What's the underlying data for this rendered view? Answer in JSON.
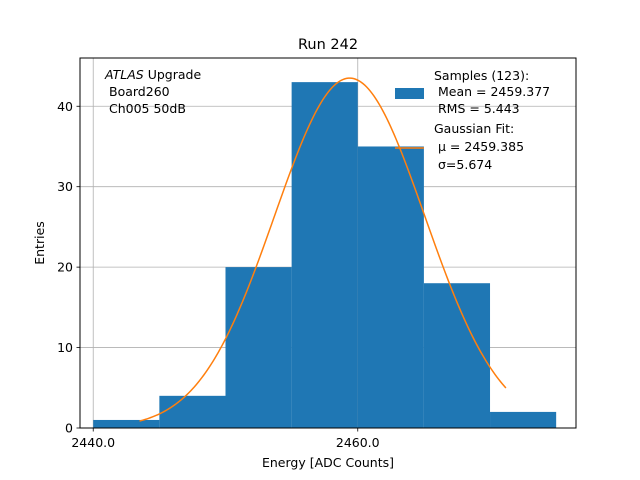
{
  "chart_data": {
    "type": "bar",
    "title": "Run 242",
    "xlabel": "Energy [ADC Counts]",
    "ylabel": "Entries",
    "xlim": [
      2439.0,
      2476.5
    ],
    "ylim": [
      0,
      46
    ],
    "xticks": [
      2440.0,
      2460.0
    ],
    "xtick_labels": [
      "2440.0",
      "2460.0"
    ],
    "yticks": [
      0,
      10,
      20,
      30,
      40
    ],
    "ytick_labels": [
      "0",
      "10",
      "20",
      "30",
      "40"
    ],
    "grid": true,
    "bins": [
      {
        "x0": 2440.0,
        "x1": 2445.0,
        "count": 1
      },
      {
        "x0": 2445.0,
        "x1": 2450.0,
        "count": 4
      },
      {
        "x0": 2450.0,
        "x1": 2455.0,
        "count": 20
      },
      {
        "x0": 2455.0,
        "x1": 2460.0,
        "count": 43
      },
      {
        "x0": 2460.0,
        "x1": 2465.0,
        "count": 35
      },
      {
        "x0": 2465.0,
        "x1": 2470.0,
        "count": 18
      },
      {
        "x0": 2470.0,
        "x1": 2475.0,
        "count": 2
      }
    ],
    "fit": {
      "type": "gaussian",
      "amplitude": 43.5,
      "mu": 2459.385,
      "sigma": 5.674,
      "x_range": [
        2443.5,
        2471.2
      ]
    },
    "annotation": {
      "lines": [
        "ATLAS Upgrade",
        "Board260",
        "Ch005 50dB"
      ]
    },
    "legend": {
      "placement": "top-right",
      "hist_lines": [
        "Samples (123):",
        "Mean = 2459.377",
        "RMS = 5.443"
      ],
      "fit_lines": [
        "Gaussian Fit:",
        "μ = 2459.385",
        "σ=5.674"
      ]
    },
    "colors": {
      "bars": "#1f77b4",
      "fit": "#ff7f0e",
      "grid": "#b0b0b0"
    }
  }
}
